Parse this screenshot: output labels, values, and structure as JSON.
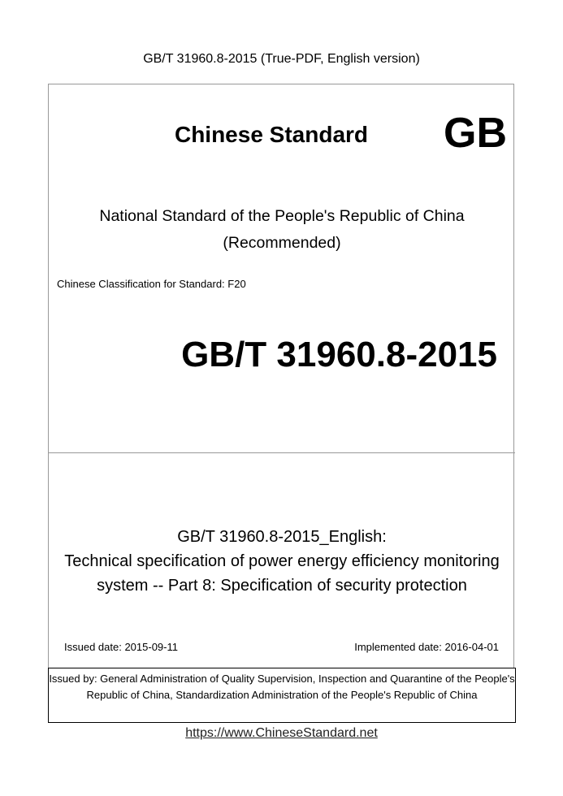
{
  "header": "GB/T 31960.8-2015 (True-PDF, English version)",
  "cover": {
    "chinese_standard": "Chinese Standard",
    "gb_mark": "GB",
    "national_line1": "National Standard of the People's Republic of China",
    "national_line2": "(Recommended)",
    "classification": "Chinese Classification for Standard: F20",
    "standard_code": "GB/T 31960.8-2015",
    "title_line1": "GB/T 31960.8-2015_English:",
    "title_line2": "Technical specification of power energy efficiency monitoring",
    "title_line3": "system -- Part 8: Specification of security protection",
    "issued_date": "Issued date: 2015-09-11",
    "implemented_date": "Implemented date: 2016-04-01",
    "issued_by": "Issued by: General Administration of Quality Supervision, Inspection and Quarantine of the People's Republic of China, Standardization Administration of the People's Republic of China"
  },
  "footer_url": "https://www.ChineseStandard.net"
}
